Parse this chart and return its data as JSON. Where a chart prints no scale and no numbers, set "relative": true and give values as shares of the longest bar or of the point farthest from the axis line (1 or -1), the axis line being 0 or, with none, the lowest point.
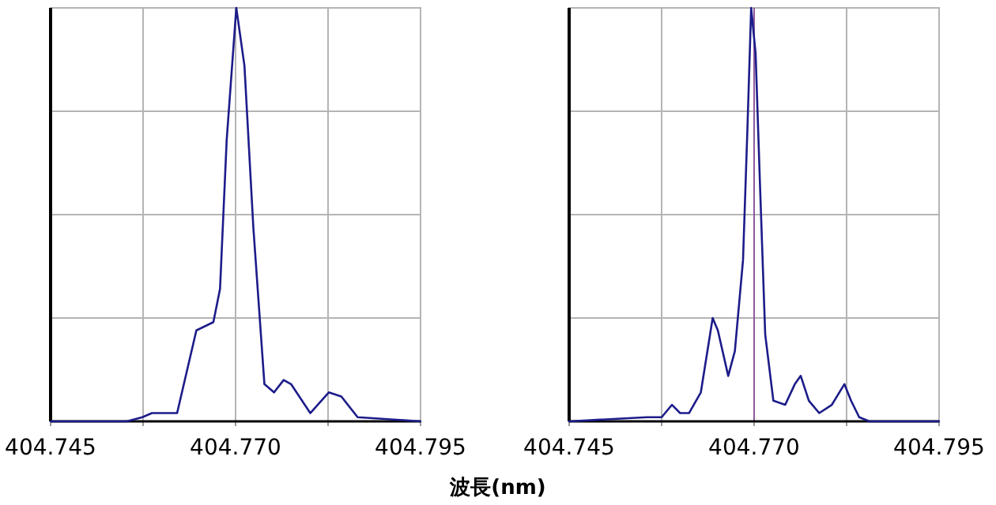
{
  "chart_data": [
    {
      "type": "line",
      "relative": true,
      "xlabel": "波長(nm)",
      "xlim": [
        404.745,
        404.795
      ],
      "xticks": [
        {
          "value": 404.745,
          "label": "404.745"
        },
        {
          "value": 404.7575,
          "label": null
        },
        {
          "value": 404.77,
          "label": "404.770"
        },
        {
          "value": 404.7825,
          "label": null
        },
        {
          "value": 404.795,
          "label": "404.795"
        }
      ],
      "grid": true,
      "tick_labels": "x",
      "color": "#1c1c8a",
      "x": [
        404.745,
        404.7553,
        404.7574,
        404.7587,
        404.7621,
        404.7647,
        404.767,
        404.7679,
        404.7688,
        404.7701,
        404.7712,
        404.7724,
        404.7739,
        404.7752,
        404.7765,
        404.7775,
        404.7801,
        404.7826,
        404.7843,
        404.7865,
        404.795
      ],
      "values": [
        0,
        0,
        0.01,
        0.02,
        0.02,
        0.22,
        0.24,
        0.32,
        0.68,
        1,
        0.86,
        0.47,
        0.09,
        0.07,
        0.1,
        0.09,
        0.02,
        0.07,
        0.06,
        0.01,
        0
      ]
    },
    {
      "type": "line",
      "relative": true,
      "xlim": [
        404.745,
        404.795
      ],
      "xticks": [
        {
          "value": 404.745,
          "label": "404.745"
        },
        {
          "value": 404.7575,
          "label": null
        },
        {
          "value": 404.77,
          "label": "404.770"
        },
        {
          "value": 404.7825,
          "label": null
        },
        {
          "value": 404.795,
          "label": "404.795"
        }
      ],
      "grid": true,
      "tick_labels": "x",
      "color": "#1c1c8a",
      "ref_lines": [
        {
          "axis": "x",
          "value": 404.77,
          "label": null,
          "color": "#8e5a9e"
        }
      ],
      "x": [
        404.745,
        404.7555,
        404.7575,
        404.7589,
        404.76,
        404.7612,
        404.7628,
        404.7644,
        404.7651,
        404.7665,
        404.7674,
        404.7685,
        404.7691,
        404.7696,
        404.7702,
        404.7708,
        404.7715,
        404.7726,
        404.7742,
        404.7755,
        404.7763,
        404.7774,
        404.7788,
        404.7805,
        404.7822,
        404.7831,
        404.7842,
        404.7856,
        404.795
      ],
      "values": [
        0,
        0.01,
        0.01,
        0.04,
        0.02,
        0.02,
        0.07,
        0.25,
        0.22,
        0.11,
        0.17,
        0.39,
        0.71,
        1,
        0.89,
        0.57,
        0.21,
        0.05,
        0.04,
        0.09,
        0.11,
        0.05,
        0.02,
        0.04,
        0.09,
        0.05,
        0.01,
        0,
        0
      ]
    }
  ]
}
